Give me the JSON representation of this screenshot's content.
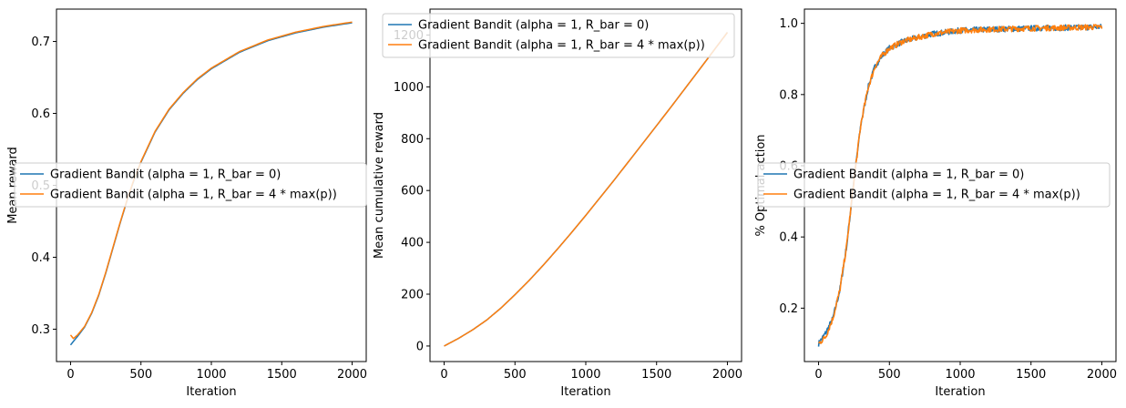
{
  "chart_data": [
    {
      "type": "line",
      "title": "",
      "xlabel": "Iteration",
      "ylabel": "Mean reward",
      "xlim": [
        -100,
        2100
      ],
      "ylim": [
        0.255,
        0.745
      ],
      "xticks": [
        0,
        500,
        1000,
        1500,
        2000
      ],
      "yticks": [
        0.3,
        0.4,
        0.5,
        0.6,
        0.7
      ],
      "ytick_labels": [
        "0.3",
        "0.4",
        "0.5",
        "0.6",
        "0.7"
      ],
      "legend": "center-left",
      "noise": 0,
      "series": [
        {
          "name": "Gradient Bandit (alpha = 1, R_bar = 0)",
          "color": "#1f77b4",
          "x": [
            0,
            20,
            50,
            100,
            150,
            200,
            250,
            300,
            350,
            400,
            450,
            500,
            600,
            700,
            800,
            900,
            1000,
            1200,
            1400,
            1600,
            1800,
            2000
          ],
          "y": [
            0.278,
            0.283,
            0.29,
            0.303,
            0.322,
            0.347,
            0.378,
            0.412,
            0.446,
            0.478,
            0.507,
            0.532,
            0.574,
            0.605,
            0.628,
            0.647,
            0.662,
            0.685,
            0.701,
            0.712,
            0.72,
            0.726
          ]
        },
        {
          "name": "Gradient Bandit (alpha = 1, R_bar = 4 * max(p))",
          "color": "#ff7f0e",
          "x": [
            0,
            20,
            50,
            100,
            150,
            200,
            250,
            300,
            350,
            400,
            450,
            500,
            600,
            700,
            800,
            900,
            1000,
            1200,
            1400,
            1600,
            1800,
            2000
          ],
          "y": [
            0.292,
            0.287,
            0.292,
            0.304,
            0.323,
            0.348,
            0.379,
            0.413,
            0.447,
            0.479,
            0.508,
            0.533,
            0.575,
            0.606,
            0.629,
            0.648,
            0.663,
            0.686,
            0.702,
            0.713,
            0.721,
            0.727
          ]
        }
      ]
    },
    {
      "type": "line",
      "title": "",
      "xlabel": "Iteration",
      "ylabel": "Mean cumulative reward",
      "xlim": [
        -100,
        2100
      ],
      "ylim": [
        -60,
        1300
      ],
      "xticks": [
        0,
        500,
        1000,
        1500,
        2000
      ],
      "yticks": [
        0,
        200,
        400,
        600,
        800,
        1000,
        1200
      ],
      "ytick_labels": [
        "0",
        "200",
        "400",
        "600",
        "800",
        "1000",
        "1200"
      ],
      "legend": "top-left",
      "noise": 0,
      "series": [
        {
          "name": "Gradient Bandit (alpha = 1, R_bar = 0)",
          "color": "#1f77b4",
          "x": [
            0,
            100,
            200,
            300,
            400,
            500,
            600,
            700,
            800,
            900,
            1000,
            1200,
            1400,
            1600,
            1800,
            2000
          ],
          "y": [
            0,
            29,
            62,
            100,
            146,
            198,
            253,
            312,
            374,
            438,
            504,
            640,
            780,
            921,
            1065,
            1210
          ]
        },
        {
          "name": "Gradient Bandit (alpha = 1, R_bar = 4 * max(p))",
          "color": "#ff7f0e",
          "x": [
            0,
            100,
            200,
            300,
            400,
            500,
            600,
            700,
            800,
            900,
            1000,
            1200,
            1400,
            1600,
            1800,
            2000
          ],
          "y": [
            0,
            29,
            62,
            100,
            146,
            198,
            253,
            312,
            374,
            438,
            504,
            640,
            780,
            921,
            1065,
            1210
          ]
        }
      ]
    },
    {
      "type": "line",
      "title": "",
      "xlabel": "Iteration",
      "ylabel": "% Optimal action",
      "xlim": [
        -100,
        2100
      ],
      "ylim": [
        0.05,
        1.04
      ],
      "xticks": [
        0,
        500,
        1000,
        1500,
        2000
      ],
      "yticks": [
        0.2,
        0.4,
        0.6,
        0.8,
        1.0
      ],
      "ytick_labels": [
        "0.2",
        "0.4",
        "0.6",
        "0.8",
        "1.0"
      ],
      "legend": "center-left",
      "noise": 0.008,
      "series": [
        {
          "name": "Gradient Bandit (alpha = 1, R_bar = 0)",
          "color": "#1f77b4",
          "x": [
            0,
            50,
            100,
            150,
            200,
            250,
            300,
            350,
            400,
            450,
            500,
            600,
            700,
            800,
            900,
            1000,
            1200,
            1400,
            1600,
            1800,
            2000
          ],
          "y": [
            0.1,
            0.13,
            0.17,
            0.25,
            0.38,
            0.56,
            0.72,
            0.82,
            0.88,
            0.91,
            0.93,
            0.95,
            0.96,
            0.97,
            0.975,
            0.98,
            0.983,
            0.985,
            0.987,
            0.988,
            0.99
          ]
        },
        {
          "name": "Gradient Bandit (alpha = 1, R_bar = 4 * max(p))",
          "color": "#ff7f0e",
          "x": [
            0,
            50,
            100,
            150,
            200,
            250,
            300,
            350,
            400,
            450,
            500,
            600,
            700,
            800,
            900,
            1000,
            1200,
            1400,
            1600,
            1800,
            2000
          ],
          "y": [
            0.1,
            0.12,
            0.17,
            0.25,
            0.38,
            0.56,
            0.72,
            0.82,
            0.88,
            0.91,
            0.93,
            0.95,
            0.96,
            0.97,
            0.975,
            0.98,
            0.983,
            0.985,
            0.987,
            0.988,
            0.99
          ]
        }
      ]
    }
  ]
}
